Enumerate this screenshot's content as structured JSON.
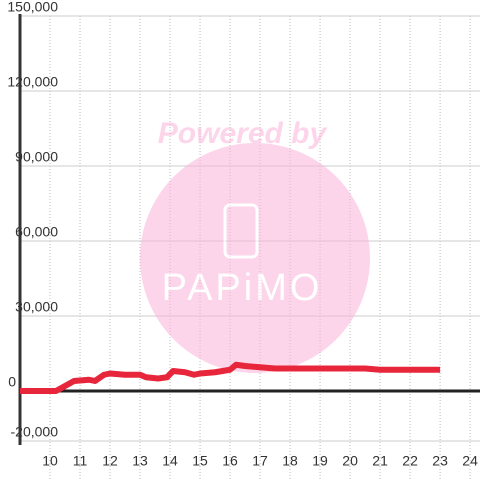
{
  "chart_data": {
    "type": "line",
    "x": [
      9,
      10,
      10.2,
      10.5,
      10.8,
      11.3,
      11.5,
      11.8,
      12,
      12.5,
      13,
      13.2,
      13.6,
      13.9,
      14.1,
      14.5,
      14.8,
      15,
      15.5,
      16,
      16.2,
      16.5,
      17,
      17.5,
      20.5,
      21,
      23
    ],
    "series": [
      {
        "color": "#e8263b",
        "values": [
          0,
          0,
          0,
          2000,
          4000,
          4500,
          4000,
          6500,
          7000,
          6500,
          6500,
          5500,
          5000,
          5500,
          8000,
          7500,
          6500,
          7000,
          7500,
          8500,
          10500,
          10000,
          9500,
          9000,
          9000,
          8500,
          8500
        ]
      }
    ],
    "xlim": [
      9,
      24.33
    ],
    "xticks": [
      10,
      11,
      12,
      13,
      14,
      15,
      16,
      17,
      18,
      19,
      20,
      21,
      22,
      23,
      24
    ],
    "ylim": [
      -20000,
      150000
    ],
    "yticks": [
      {
        "value": -20000,
        "label": "-20,000"
      },
      0,
      {
        "value": 30000,
        "label": "30,000"
      },
      {
        "value": 60000,
        "label": "60,000"
      },
      {
        "value": 90000,
        "label": "90,000"
      },
      {
        "value": 120000,
        "label": "120,000"
      },
      {
        "value": 150000,
        "label": "150,000"
      }
    ],
    "grid": true,
    "watermark": {
      "text": "Powered by",
      "logo": "PAPiMO"
    }
  }
}
